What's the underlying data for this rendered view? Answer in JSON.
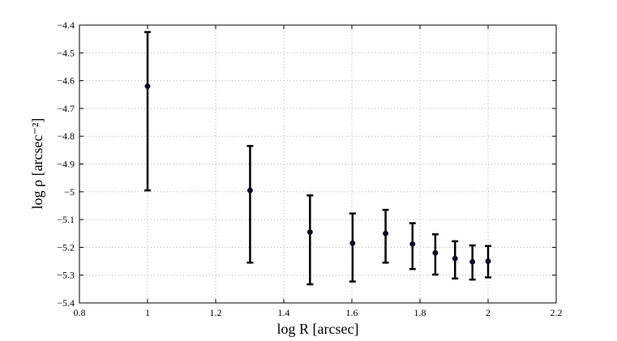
{
  "chart_data": {
    "type": "scatter",
    "title": "",
    "xlabel": "log R [arcsec]",
    "ylabel": "log ρ [arcsec⁻²]",
    "xlim": [
      0.8,
      2.2
    ],
    "ylim": [
      -5.4,
      -4.4
    ],
    "grid": true,
    "x_ticks": [
      0.8,
      1,
      1.2,
      1.4,
      1.6,
      1.8,
      2,
      2.2
    ],
    "x_tick_labels": [
      "0.8",
      "1",
      "1.2",
      "1.4",
      "1.6",
      "1.8",
      "2",
      "2.2"
    ],
    "y_ticks": [
      -4.4,
      -4.5,
      -4.6,
      -4.7,
      -4.8,
      -4.9,
      -5,
      -5.1,
      -5.2,
      -5.3,
      -5.4
    ],
    "y_tick_labels": [
      "−4.4",
      "−4.5",
      "−4.6",
      "−4.7",
      "−4.8",
      "−4.9",
      "−5",
      "−5.1",
      "−5.2",
      "−5.3",
      "−5.4"
    ],
    "series": [
      {
        "points": [
          {
            "x": 1.0,
            "y": -4.62,
            "y_low": -4.995,
            "y_high": -4.425
          },
          {
            "x": 1.301,
            "y": -4.995,
            "y_low": -5.255,
            "y_high": -4.835
          },
          {
            "x": 1.477,
            "y": -5.145,
            "y_low": -5.333,
            "y_high": -5.013
          },
          {
            "x": 1.602,
            "y": -5.185,
            "y_low": -5.323,
            "y_high": -5.078
          },
          {
            "x": 1.699,
            "y": -5.15,
            "y_low": -5.255,
            "y_high": -5.065
          },
          {
            "x": 1.778,
            "y": -5.188,
            "y_low": -5.278,
            "y_high": -5.113
          },
          {
            "x": 1.845,
            "y": -5.22,
            "y_low": -5.298,
            "y_high": -5.153
          },
          {
            "x": 1.903,
            "y": -5.24,
            "y_low": -5.312,
            "y_high": -5.178
          },
          {
            "x": 1.954,
            "y": -5.252,
            "y_low": -5.316,
            "y_high": -5.193
          },
          {
            "x": 2.0,
            "y": -5.25,
            "y_low": -5.308,
            "y_high": -5.195
          }
        ]
      }
    ]
  }
}
